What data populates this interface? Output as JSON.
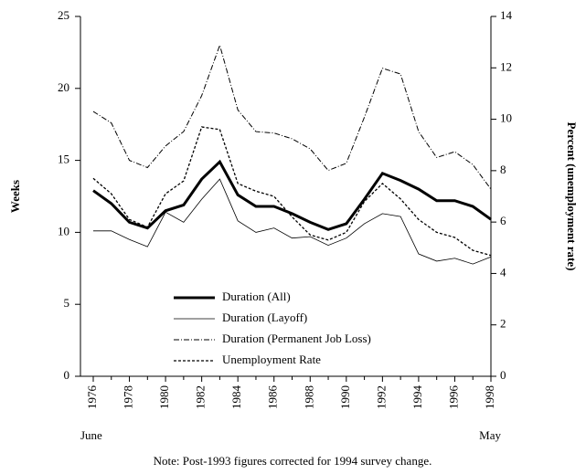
{
  "chart_data": {
    "type": "line",
    "y_label": "Weeks",
    "y2_label": "Percent (unemployment rate)",
    "x_start_label": "June",
    "x_end_label": "May",
    "note": "Note: Post-1993 figures corrected for 1994 survey change.",
    "x": [
      1976,
      1977,
      1978,
      1979,
      1980,
      1981,
      1982,
      1983,
      1984,
      1985,
      1986,
      1987,
      1988,
      1989,
      1990,
      1991,
      1992,
      1993,
      1994,
      1995,
      1996,
      1997,
      1998
    ],
    "xlim": [
      1976,
      1998
    ],
    "xticks": [
      1976,
      1978,
      1980,
      1982,
      1984,
      1986,
      1988,
      1990,
      1992,
      1994,
      1996,
      1998
    ],
    "xminorticks": [
      1977,
      1979,
      1981,
      1983,
      1985,
      1987,
      1989,
      1991,
      1993,
      1995,
      1997
    ],
    "ylim": [
      0,
      25
    ],
    "yticks": [
      0,
      5,
      10,
      15,
      20,
      25
    ],
    "y2lim": [
      0,
      14
    ],
    "y2ticks": [
      0,
      2,
      4,
      6,
      8,
      10,
      12,
      14
    ],
    "series": [
      {
        "name": "Duration (All)",
        "color": "#000",
        "width": 3,
        "dash": "none",
        "values": [
          12.9,
          12.0,
          10.7,
          10.3,
          11.5,
          11.9,
          13.7,
          14.9,
          12.6,
          11.8,
          11.8,
          11.3,
          10.7,
          10.2,
          10.6,
          12.3,
          14.1,
          13.6,
          13.0,
          12.2,
          12.2,
          11.8,
          10.9
        ]
      },
      {
        "name": "Duration (Layoff)",
        "color": "#000",
        "width": 0.8,
        "dash": "none",
        "values": [
          10.1,
          10.1,
          9.5,
          9.0,
          11.4,
          10.7,
          12.3,
          13.7,
          10.8,
          10.0,
          10.3,
          9.6,
          9.7,
          9.1,
          9.6,
          10.6,
          11.3,
          11.1,
          8.5,
          8.0,
          8.2,
          7.8,
          8.3
        ]
      },
      {
        "name": "Duration (Permanent Job Loss)",
        "color": "#000",
        "width": 1,
        "dash": "6 2 1 2",
        "values": [
          18.4,
          17.6,
          15.0,
          14.5,
          16.0,
          17.0,
          19.5,
          23.0,
          18.5,
          17.0,
          16.9,
          16.5,
          15.8,
          14.3,
          14.8,
          18.0,
          21.4,
          21.0,
          17.0,
          15.2,
          15.6,
          14.7,
          13.0
        ]
      },
      {
        "name": "Unemployment Rate",
        "color": "#000",
        "width": 1.3,
        "dash": "3 2",
        "axis": "y2",
        "values": [
          7.7,
          7.1,
          6.1,
          5.8,
          7.1,
          7.6,
          9.7,
          9.6,
          7.5,
          7.2,
          7.0,
          6.2,
          5.5,
          5.3,
          5.6,
          6.8,
          7.5,
          6.9,
          6.1,
          5.6,
          5.4,
          4.9,
          4.7
        ]
      }
    ]
  }
}
